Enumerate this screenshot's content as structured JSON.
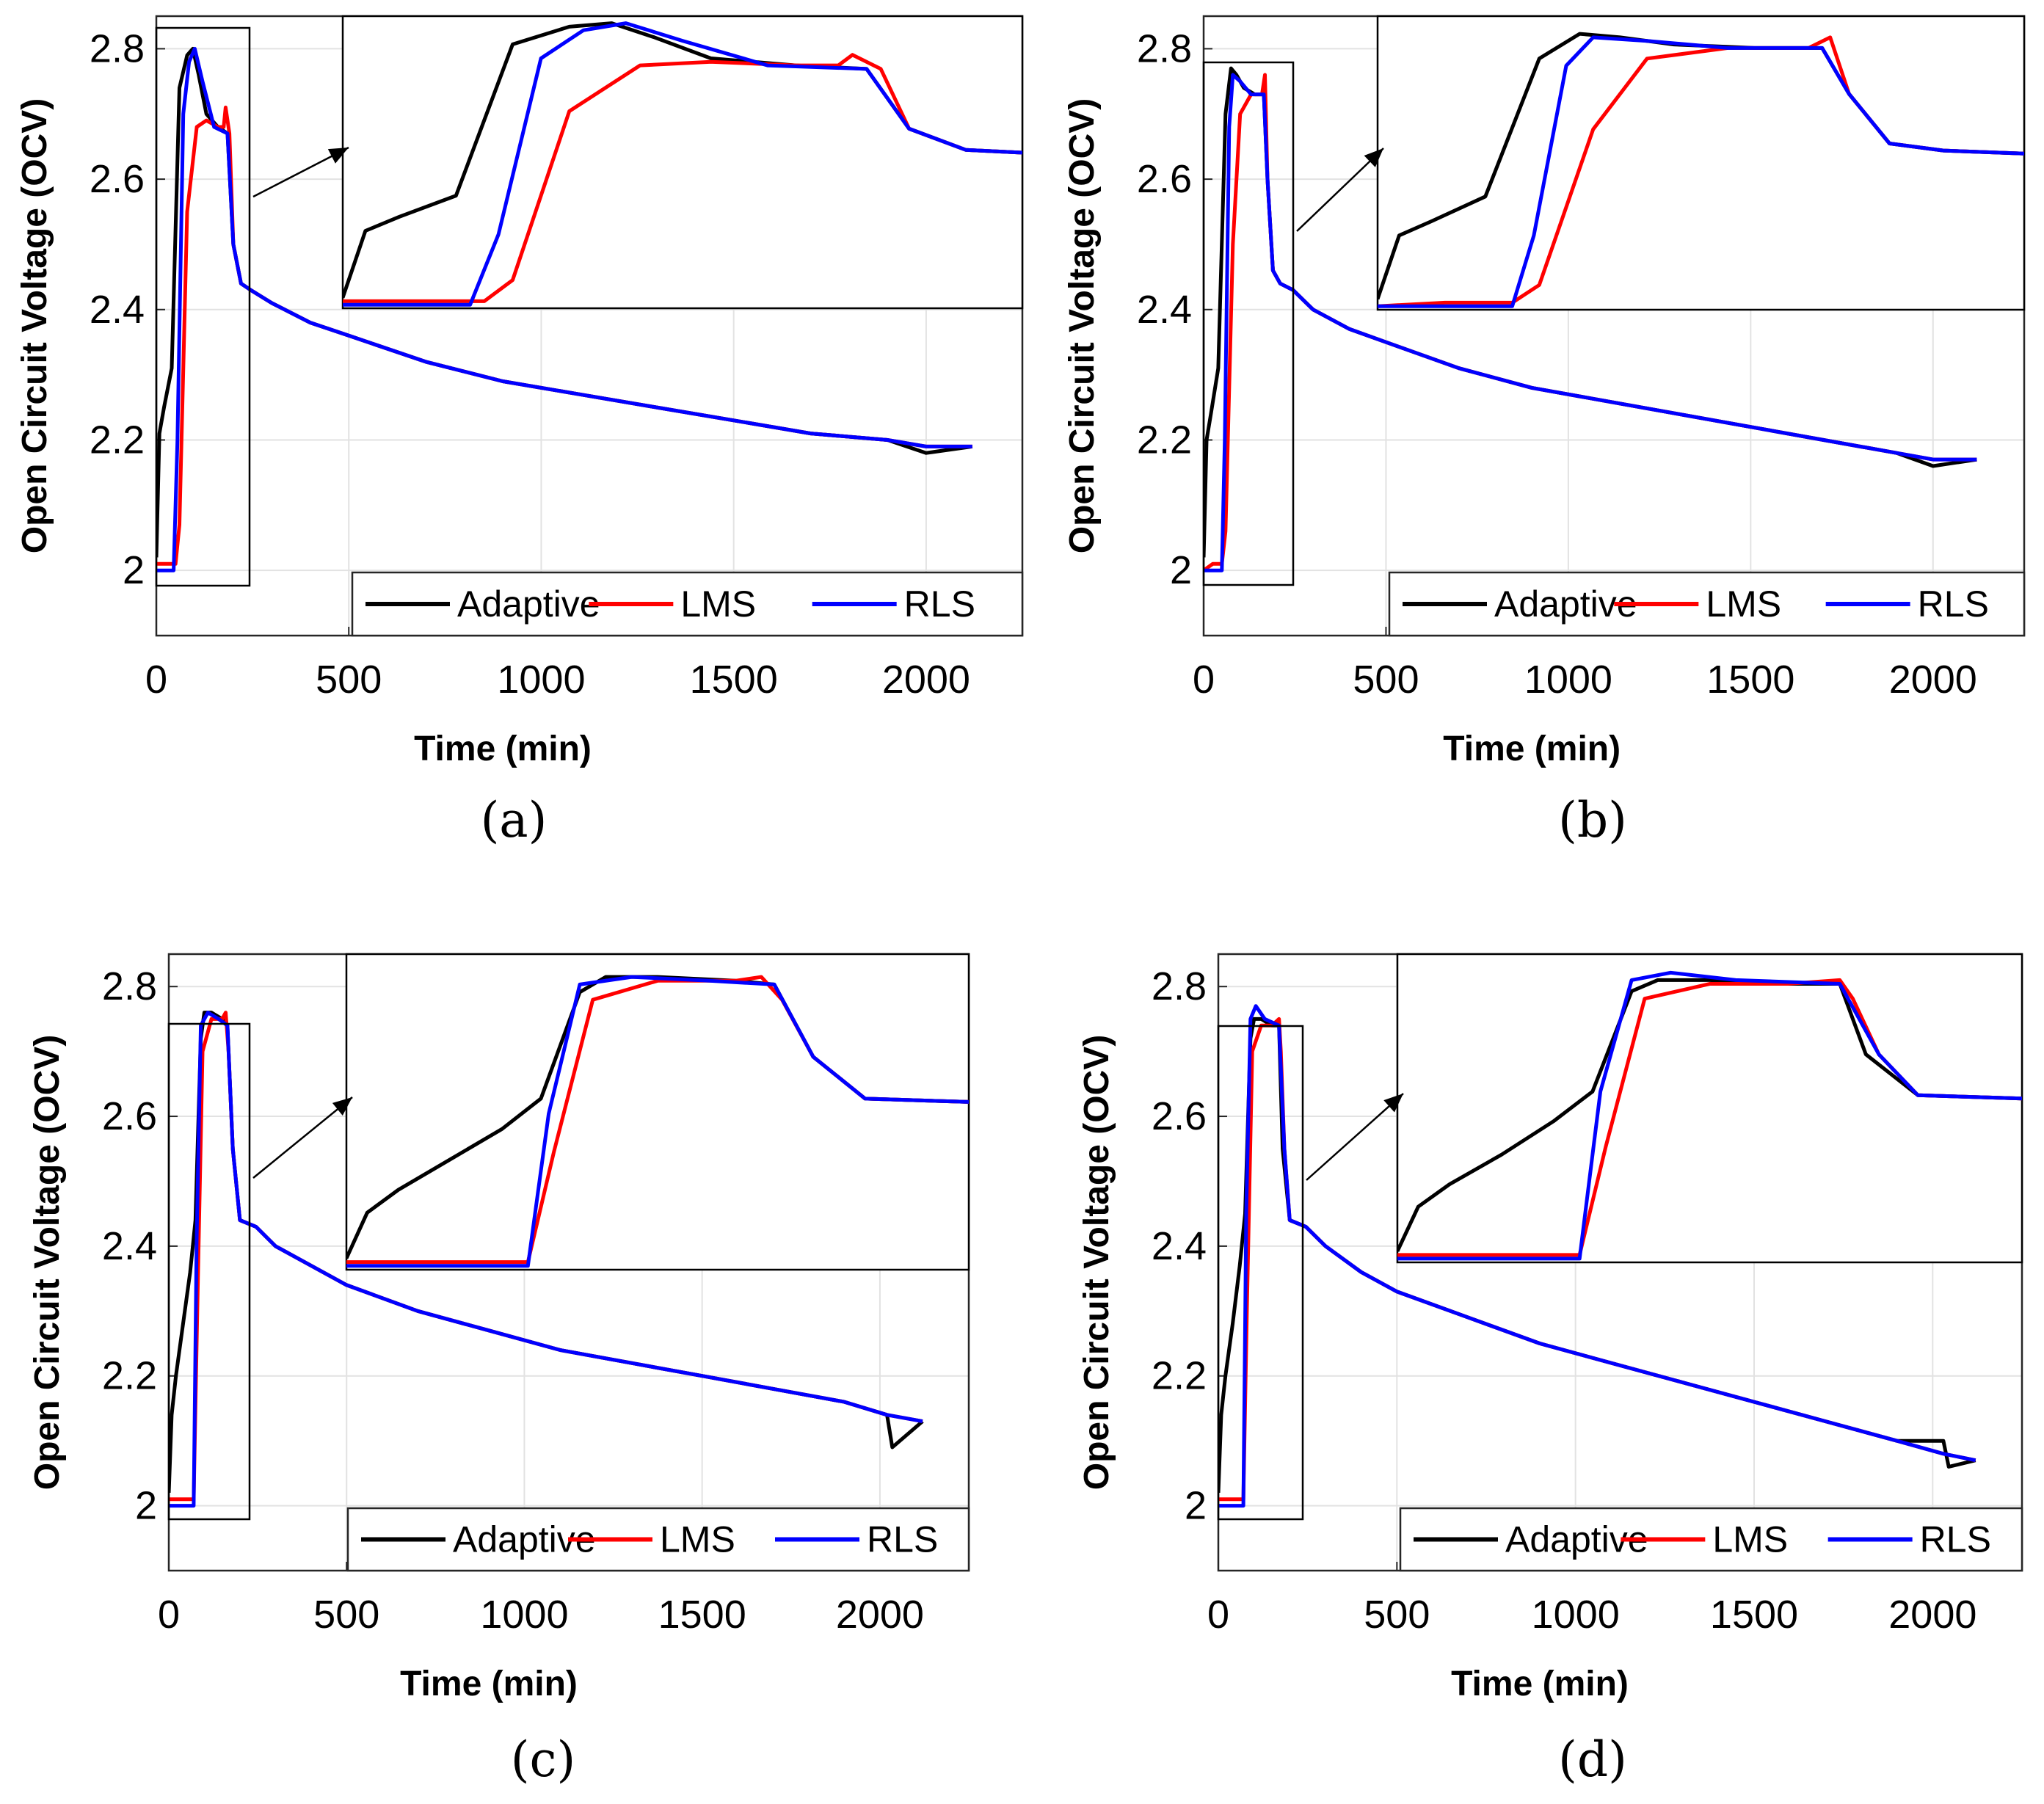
{
  "chart_data": [
    {
      "panel_label": "(a)",
      "type": "line",
      "xlabel": "Time (min)",
      "ylabel": "Open Circuit Voltage (OCV)",
      "xlim": [
        0,
        2250
      ],
      "ylim": [
        1.9,
        2.85
      ],
      "xticks": [
        0,
        500,
        1000,
        1500,
        2000
      ],
      "yticks": [
        2,
        2.2,
        2.4,
        2.6,
        2.8
      ],
      "grid": true,
      "legend_position": "bottom-right",
      "colors": {
        "Adaptive": "#000000",
        "LMS": "#ff0000",
        "RLS": "#0000ff"
      },
      "series": [
        {
          "name": "Adaptive",
          "x": [
            0,
            8,
            20,
            40,
            60,
            80,
            95,
            110,
            130,
            160,
            185,
            200,
            220,
            245,
            300,
            400,
            500,
            700,
            900,
            1100,
            1300,
            1500,
            1700,
            1900,
            2000,
            2120
          ],
          "y": [
            2.02,
            2.21,
            2.25,
            2.31,
            2.74,
            2.79,
            2.8,
            2.76,
            2.7,
            2.68,
            2.67,
            2.5,
            2.44,
            2.43,
            2.41,
            2.38,
            2.36,
            2.32,
            2.29,
            2.27,
            2.25,
            2.23,
            2.21,
            2.2,
            2.18,
            2.19
          ]
        },
        {
          "name": "LMS",
          "x": [
            0,
            25,
            50,
            60,
            80,
            105,
            130,
            160,
            175,
            180,
            190,
            200,
            220,
            245,
            300,
            400,
            500,
            700,
            900,
            1100,
            1300,
            1500,
            1700,
            1900,
            2000,
            2120
          ],
          "y": [
            2.01,
            2.01,
            2.01,
            2.07,
            2.55,
            2.68,
            2.69,
            2.68,
            2.68,
            2.71,
            2.67,
            2.5,
            2.44,
            2.43,
            2.41,
            2.38,
            2.36,
            2.32,
            2.29,
            2.27,
            2.25,
            2.23,
            2.21,
            2.2,
            2.19,
            2.19
          ]
        },
        {
          "name": "RLS",
          "x": [
            0,
            25,
            45,
            55,
            70,
            85,
            100,
            120,
            150,
            185,
            200,
            220,
            245,
            300,
            400,
            500,
            700,
            900,
            1100,
            1300,
            1500,
            1700,
            1900,
            2000,
            2120
          ],
          "y": [
            2.0,
            2.0,
            2.0,
            2.2,
            2.7,
            2.78,
            2.8,
            2.75,
            2.68,
            2.67,
            2.5,
            2.44,
            2.43,
            2.41,
            2.38,
            2.36,
            2.32,
            2.29,
            2.27,
            2.25,
            2.23,
            2.21,
            2.2,
            2.19,
            2.19
          ]
        }
      ]
    },
    {
      "panel_label": "(b)",
      "type": "line",
      "xlabel": "Time (min)",
      "ylabel": "Open Circuit Voltage (OCV)",
      "xlim": [
        0,
        2250
      ],
      "ylim": [
        1.9,
        2.85
      ],
      "xticks": [
        0,
        500,
        1000,
        1500,
        2000
      ],
      "yticks": [
        2,
        2.2,
        2.4,
        2.6,
        2.8
      ],
      "grid": true,
      "legend_position": "bottom-right",
      "colors": {
        "Adaptive": "#000000",
        "LMS": "#ff0000",
        "RLS": "#0000ff"
      },
      "series": [
        {
          "name": "Adaptive",
          "x": [
            0,
            8,
            20,
            40,
            60,
            75,
            90,
            110,
            140,
            165,
            175,
            190,
            210,
            245,
            300,
            400,
            500,
            700,
            900,
            1100,
            1300,
            1500,
            1700,
            1900,
            2000,
            2120
          ],
          "y": [
            2.02,
            2.2,
            2.24,
            2.31,
            2.7,
            2.77,
            2.76,
            2.74,
            2.73,
            2.73,
            2.6,
            2.46,
            2.44,
            2.43,
            2.4,
            2.37,
            2.35,
            2.31,
            2.28,
            2.26,
            2.24,
            2.22,
            2.2,
            2.18,
            2.16,
            2.17
          ]
        },
        {
          "name": "LMS",
          "x": [
            0,
            25,
            50,
            60,
            80,
            100,
            130,
            160,
            168,
            175,
            190,
            210,
            245,
            300,
            400,
            500,
            700,
            900,
            1100,
            1300,
            1500,
            1700,
            1900,
            2000,
            2120
          ],
          "y": [
            2.0,
            2.01,
            2.01,
            2.06,
            2.5,
            2.7,
            2.73,
            2.73,
            2.76,
            2.6,
            2.46,
            2.44,
            2.43,
            2.4,
            2.37,
            2.35,
            2.31,
            2.28,
            2.26,
            2.24,
            2.22,
            2.2,
            2.18,
            2.17,
            2.17
          ]
        },
        {
          "name": "RLS",
          "x": [
            0,
            25,
            50,
            58,
            70,
            80,
            100,
            130,
            165,
            175,
            190,
            210,
            245,
            300,
            400,
            500,
            700,
            900,
            1100,
            1300,
            1500,
            1700,
            1900,
            2000,
            2120
          ],
          "y": [
            2.0,
            2.0,
            2.0,
            2.2,
            2.68,
            2.76,
            2.75,
            2.73,
            2.73,
            2.6,
            2.46,
            2.44,
            2.43,
            2.4,
            2.37,
            2.35,
            2.31,
            2.28,
            2.26,
            2.24,
            2.22,
            2.2,
            2.18,
            2.17,
            2.17
          ]
        }
      ]
    },
    {
      "panel_label": "(c)",
      "type": "line",
      "xlabel": "Time (min)",
      "ylabel": "Open Circuit Voltage (OCV)",
      "xlim": [
        0,
        2250
      ],
      "ylim": [
        1.9,
        2.85
      ],
      "xticks": [
        0,
        500,
        1000,
        1500,
        2000
      ],
      "yticks": [
        2,
        2.2,
        2.4,
        2.6,
        2.8
      ],
      "grid": true,
      "legend_position": "bottom-right",
      "colors": {
        "Adaptive": "#000000",
        "LMS": "#ff0000",
        "RLS": "#0000ff"
      },
      "series": [
        {
          "name": "Adaptive",
          "x": [
            0,
            8,
            20,
            40,
            60,
            75,
            90,
            100,
            120,
            150,
            165,
            180,
            200,
            245,
            300,
            400,
            500,
            700,
            900,
            1100,
            1300,
            1500,
            1700,
            1900,
            2020,
            2035,
            2120
          ],
          "y": [
            2.02,
            2.14,
            2.2,
            2.28,
            2.36,
            2.44,
            2.72,
            2.76,
            2.76,
            2.75,
            2.74,
            2.55,
            2.44,
            2.43,
            2.4,
            2.37,
            2.34,
            2.3,
            2.27,
            2.24,
            2.22,
            2.2,
            2.18,
            2.16,
            2.14,
            2.09,
            2.13
          ]
        },
        {
          "name": "LMS",
          "x": [
            0,
            25,
            50,
            70,
            80,
            95,
            120,
            150,
            160,
            168,
            180,
            200,
            245,
            300,
            400,
            500,
            700,
            900,
            1100,
            1300,
            1500,
            1700,
            1900,
            2020,
            2120
          ],
          "y": [
            2.01,
            2.01,
            2.01,
            2.01,
            2.3,
            2.7,
            2.75,
            2.75,
            2.76,
            2.7,
            2.55,
            2.44,
            2.43,
            2.4,
            2.37,
            2.34,
            2.3,
            2.27,
            2.24,
            2.22,
            2.2,
            2.18,
            2.16,
            2.14,
            2.13
          ]
        },
        {
          "name": "RLS",
          "x": [
            0,
            25,
            50,
            70,
            78,
            90,
            110,
            140,
            165,
            180,
            200,
            245,
            300,
            400,
            500,
            700,
            900,
            1100,
            1300,
            1500,
            1700,
            1900,
            2020,
            2120
          ],
          "y": [
            2.0,
            2.0,
            2.0,
            2.0,
            2.4,
            2.74,
            2.76,
            2.75,
            2.74,
            2.55,
            2.44,
            2.43,
            2.4,
            2.37,
            2.34,
            2.3,
            2.27,
            2.24,
            2.22,
            2.2,
            2.18,
            2.16,
            2.14,
            2.13
          ]
        }
      ]
    },
    {
      "panel_label": "(d)",
      "type": "line",
      "xlabel": "Time (min)",
      "ylabel": "Open Circuit Voltage (OCV)",
      "xlim": [
        0,
        2250
      ],
      "ylim": [
        1.9,
        2.85
      ],
      "xticks": [
        0,
        500,
        1000,
        1500,
        2000
      ],
      "yticks": [
        2,
        2.2,
        2.4,
        2.6,
        2.8
      ],
      "grid": true,
      "legend_position": "bottom-right",
      "colors": {
        "Adaptive": "#000000",
        "LMS": "#ff0000",
        "RLS": "#0000ff"
      },
      "series": [
        {
          "name": "Adaptive",
          "x": [
            0,
            8,
            20,
            40,
            60,
            75,
            90,
            100,
            120,
            150,
            170,
            180,
            200,
            245,
            300,
            400,
            500,
            700,
            900,
            1100,
            1300,
            1500,
            1700,
            1900,
            2030,
            2045,
            2120
          ],
          "y": [
            2.02,
            2.14,
            2.2,
            2.28,
            2.37,
            2.45,
            2.72,
            2.75,
            2.75,
            2.74,
            2.74,
            2.55,
            2.44,
            2.43,
            2.4,
            2.36,
            2.33,
            2.29,
            2.25,
            2.22,
            2.19,
            2.16,
            2.13,
            2.1,
            2.1,
            2.06,
            2.07
          ]
        },
        {
          "name": "LMS",
          "x": [
            0,
            25,
            50,
            70,
            80,
            95,
            120,
            150,
            170,
            175,
            185,
            200,
            245,
            300,
            400,
            500,
            700,
            900,
            1100,
            1300,
            1500,
            1700,
            1900,
            2030,
            2120
          ],
          "y": [
            2.01,
            2.01,
            2.01,
            2.01,
            2.3,
            2.7,
            2.74,
            2.74,
            2.75,
            2.7,
            2.55,
            2.44,
            2.43,
            2.4,
            2.36,
            2.33,
            2.29,
            2.25,
            2.22,
            2.19,
            2.16,
            2.13,
            2.1,
            2.08,
            2.07
          ]
        },
        {
          "name": "RLS",
          "x": [
            0,
            25,
            50,
            70,
            78,
            90,
            105,
            130,
            170,
            185,
            200,
            245,
            300,
            400,
            500,
            700,
            900,
            1100,
            1300,
            1500,
            1700,
            1900,
            2030,
            2120
          ],
          "y": [
            2.0,
            2.0,
            2.0,
            2.0,
            2.45,
            2.75,
            2.77,
            2.75,
            2.74,
            2.55,
            2.44,
            2.43,
            2.4,
            2.36,
            2.33,
            2.29,
            2.25,
            2.22,
            2.19,
            2.16,
            2.13,
            2.1,
            2.08,
            2.07
          ]
        }
      ]
    }
  ]
}
